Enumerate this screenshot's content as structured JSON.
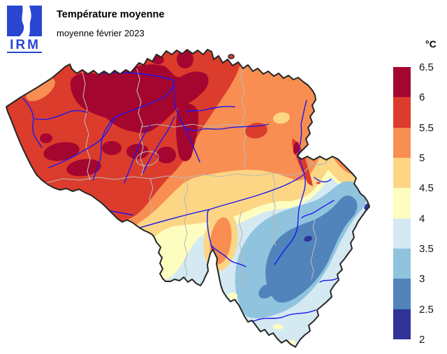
{
  "header": {
    "logo_text": "IRM",
    "logo_color": "#2946d2",
    "title": "Température moyenne",
    "subtitle": "moyenne février 2023"
  },
  "legend": {
    "unit_label": "°C",
    "tick_labels": [
      "6.5",
      "6",
      "5.5",
      "5",
      "4.5",
      "4",
      "3.5",
      "3",
      "2.5",
      "2"
    ],
    "bins": [
      {
        "from": 6.0,
        "to": 6.5,
        "color": "#a50630"
      },
      {
        "from": 5.5,
        "to": 6.0,
        "color": "#dc3c2c"
      },
      {
        "from": 5.0,
        "to": 5.5,
        "color": "#f88e52"
      },
      {
        "from": 4.5,
        "to": 5.0,
        "color": "#fcd684"
      },
      {
        "from": 4.0,
        "to": 4.5,
        "color": "#fdfdc0"
      },
      {
        "from": 3.5,
        "to": 4.0,
        "color": "#d4e9f2"
      },
      {
        "from": 3.0,
        "to": 3.5,
        "color": "#90c3de"
      },
      {
        "from": 2.5,
        "to": 3.0,
        "color": "#5084bb"
      },
      {
        "from": 2.0,
        "to": 2.5,
        "color": "#303397"
      }
    ]
  },
  "palette": {
    "dark_red": "#a50630",
    "red": "#dc3c2c",
    "orange": "#f88e52",
    "sand": "#fcd684",
    "pale_yellow": "#fdfdc0",
    "pale_blue": "#d4e9f2",
    "light_blue": "#90c3de",
    "steel_blue": "#5084bb",
    "indigo": "#303397"
  },
  "map": {
    "country": "Belgium",
    "unit": "°C",
    "value_min": 2,
    "value_max": 6.5,
    "bin_size": 0.5,
    "warmest_area_range_c": "5.5–6.5 (north-west and centre)",
    "coldest_area_range_c": "2–3 (south-east highlands)",
    "border_color": "#262626",
    "province_border_color": "#b9b9b9",
    "river_color": "#1b18ef",
    "background": "#ffffff"
  }
}
